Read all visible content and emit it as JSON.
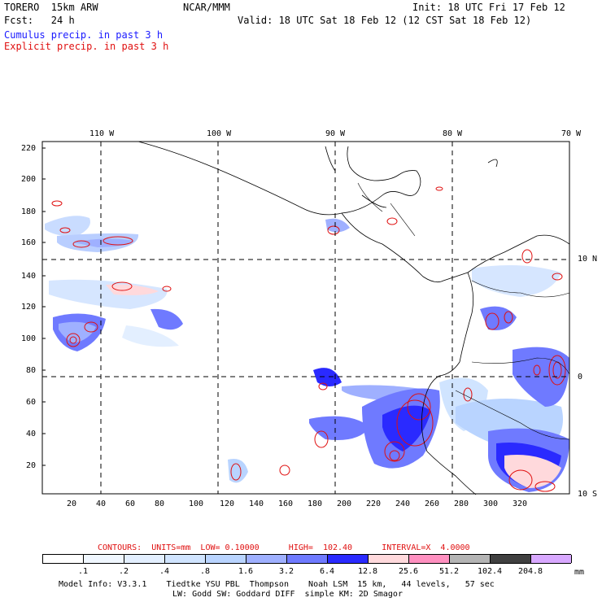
{
  "header": {
    "model": "TORERO  15km ARW",
    "org": "NCAR/MMM",
    "init": "Init: 18 UTC Fri 17 Feb 12",
    "fcst": "Fcst:   24 h",
    "valid": "Valid: 18 UTC Sat 18 Feb 12 (12 CST Sat 18 Feb 12)",
    "cumulus": "Cumulus precip. in past 3 h",
    "explicit": "Explicit precip. in past 3 h"
  },
  "axes": {
    "top_lon": [
      "110 W",
      "100 W",
      "90 W",
      "80 W",
      "70 W"
    ],
    "right_lat": [
      "10 N",
      "0",
      "10 S"
    ],
    "y_ticks": [
      "220",
      "200",
      "180",
      "160",
      "140",
      "120",
      "100",
      "80",
      "60",
      "40",
      "20"
    ],
    "x_ticks": [
      "20",
      "40",
      "60",
      "80",
      "100",
      "120",
      "140",
      "160",
      "180",
      "200",
      "220",
      "240",
      "260",
      "280",
      "300",
      "320"
    ]
  },
  "contours": {
    "text": "CONTOURS:  UNITS=mm  LOW= 0.10000      HIGH=  102.40      INTERVAL=X  4.0000"
  },
  "colorbar": {
    "labels": [
      ".1",
      ".2",
      ".4",
      ".8",
      "1.6",
      "3.2",
      "6.4",
      "12.8",
      "25.6",
      "51.2",
      "102.4",
      "204.8"
    ],
    "unit": "mm",
    "colors": [
      "#ffffff",
      "#f0f7ff",
      "#e3efff",
      "#d0e4ff",
      "#b9d4ff",
      "#9fb0ff",
      "#6f7aff",
      "#2a2aff",
      "#ffd9dc",
      "#ff90c0",
      "#b4b4b4",
      "#404040",
      "#d8a8ff"
    ]
  },
  "footer": {
    "line1": "Model Info: V3.3.1    Tiedtke YSU PBL  Thompson    Noah LSM  15 km,   44 levels,   57 sec",
    "line2": "LW: Godd SW: Goddard DIFF  simple KM: 2D Smagor"
  }
}
